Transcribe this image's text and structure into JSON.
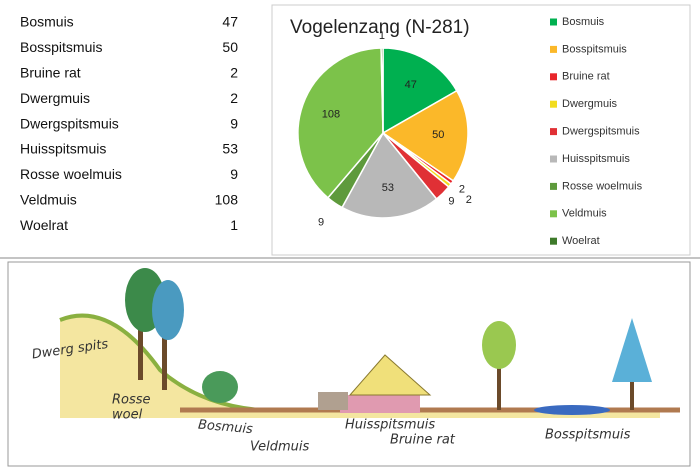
{
  "table": {
    "rows": [
      [
        "Bosmuis",
        47
      ],
      [
        "Bosspitsmuis",
        50
      ],
      [
        "Bruine rat",
        2
      ],
      [
        "Dwergmuis",
        2
      ],
      [
        "Dwergspitsmuis",
        9
      ],
      [
        "Huisspitsmuis",
        53
      ],
      [
        "Rosse woelmuis",
        9
      ],
      [
        "Veldmuis",
        108
      ],
      [
        "Woelrat",
        1
      ]
    ]
  },
  "chart_data": {
    "type": "pie",
    "title": "Vogelenzang (N-281)",
    "categories": [
      "Bosmuis",
      "Bosspitsmuis",
      "Bruine rat",
      "Dwergmuis",
      "Dwergspitsmuis",
      "Huisspitsmuis",
      "Rosse woelmuis",
      "Veldmuis",
      "Woelrat"
    ],
    "values": [
      47,
      50,
      2,
      2,
      9,
      53,
      9,
      108,
      1
    ],
    "colors": [
      "#00b050",
      "#fbb829",
      "#e8262b",
      "#f2dc1e",
      "#e03035",
      "#b8b8b8",
      "#5e9a3c",
      "#7cc24a",
      "#3e7a2a"
    ],
    "legend": "right"
  },
  "illustration": {
    "labels": [
      "Dwerg spits",
      "Rosse",
      "woel",
      "Bosmuis",
      "Veldmuis",
      "Huisspitsmuis",
      "Bruine rat",
      "Bosspitsmuis"
    ]
  }
}
